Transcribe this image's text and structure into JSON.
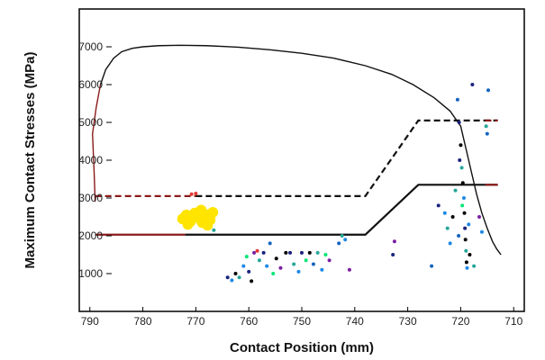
{
  "chart_data": {
    "type": "line",
    "title": "",
    "xlabel": "Contact Position (mm)",
    "ylabel": "Maximum Contact Stresses (MPa)",
    "x_reversed": true,
    "xlim": [
      792,
      708
    ],
    "ylim": [
      0,
      8000
    ],
    "x_ticks": [
      790,
      780,
      770,
      760,
      750,
      740,
      730,
      720,
      710
    ],
    "y_ticks": [
      1000,
      2000,
      3000,
      4000,
      5000,
      6000,
      7000
    ],
    "grid": false,
    "legend": "none",
    "series": [
      {
        "color_start": "#8b1a1a",
        "color": "#111111",
        "style": "solid",
        "x": [
          789,
          789.2,
          789.5,
          788.8,
          788,
          787,
          785.5,
          784,
          782,
          780,
          777,
          773,
          768,
          762,
          756,
          750,
          744,
          738,
          733,
          729,
          725,
          722,
          720,
          719,
          718,
          717,
          716,
          715,
          714,
          713.2,
          712.4
        ],
        "y": [
          2900,
          3700,
          4700,
          5400,
          6000,
          6400,
          6700,
          6870,
          6960,
          7000,
          7030,
          7040,
          7030,
          6990,
          6920,
          6830,
          6700,
          6500,
          6270,
          6000,
          5650,
          5300,
          4900,
          4300,
          3700,
          3100,
          2600,
          2200,
          1850,
          1650,
          1500
        ]
      },
      {
        "color_start": "#8b1a1a",
        "color": "#111111",
        "style": "dashed",
        "x": [
          789,
          770,
          738,
          728,
          713
        ],
        "y": [
          3050,
          3050,
          3050,
          5050,
          5050
        ]
      },
      {
        "color_start": "#8b1a1a",
        "color": "#111111",
        "style": "solid",
        "x": [
          789,
          772,
          738,
          728,
          713
        ],
        "y": [
          2030,
          2030,
          2030,
          3350,
          3350
        ]
      }
    ],
    "scatter_colors": [
      "#1a237e",
      "#1e88e5",
      "#26a69a",
      "#00e676",
      "#7b1fa2",
      "#000000",
      "#e53935",
      "#1565c0"
    ],
    "scatter": [
      {
        "x": 772.5,
        "y": 2450,
        "color": "#ffe400"
      },
      {
        "x": 771.8,
        "y": 2550,
        "color": "#ffe400"
      },
      {
        "x": 771,
        "y": 2380,
        "color": "#ffe400"
      },
      {
        "x": 770.2,
        "y": 2600,
        "color": "#ffe400"
      },
      {
        "x": 769.5,
        "y": 2480,
        "color": "#ffe400"
      },
      {
        "x": 768.8,
        "y": 2350,
        "color": "#ffe400"
      },
      {
        "x": 768,
        "y": 2560,
        "color": "#ffe400"
      },
      {
        "x": 767.3,
        "y": 2420,
        "color": "#ffe400"
      },
      {
        "x": 766.8,
        "y": 2620,
        "color": "#ffe400"
      },
      {
        "x": 771.5,
        "y": 2300,
        "color": "#ffe400"
      },
      {
        "x": 769,
        "y": 2680,
        "color": "#ffe400"
      },
      {
        "x": 767.8,
        "y": 2280,
        "color": "#ffe400"
      },
      {
        "x": 770.8,
        "y": 3100,
        "color": "#e53935"
      },
      {
        "x": 770,
        "y": 3120,
        "color": "#e53935"
      },
      {
        "x": 766.6,
        "y": 2150,
        "color": "#26a69a"
      },
      {
        "x": 764,
        "y": 900,
        "color": "#1a237e"
      },
      {
        "x": 763.2,
        "y": 820,
        "color": "#1e88e5"
      },
      {
        "x": 762.5,
        "y": 1000,
        "color": "#000000"
      },
      {
        "x": 761.8,
        "y": 900,
        "color": "#26a69a"
      },
      {
        "x": 761,
        "y": 1200,
        "color": "#1e88e5"
      },
      {
        "x": 760.4,
        "y": 1450,
        "color": "#00e676"
      },
      {
        "x": 760,
        "y": 1050,
        "color": "#1a237e"
      },
      {
        "x": 759.5,
        "y": 800,
        "color": "#000000"
      },
      {
        "x": 759,
        "y": 1550,
        "color": "#7b1fa2"
      },
      {
        "x": 758.4,
        "y": 1600,
        "color": "#e53935"
      },
      {
        "x": 758,
        "y": 1350,
        "color": "#26a69a"
      },
      {
        "x": 757.2,
        "y": 1550,
        "color": "#1a237e"
      },
      {
        "x": 756.6,
        "y": 1200,
        "color": "#1e88e5"
      },
      {
        "x": 756,
        "y": 1800,
        "color": "#1565c0"
      },
      {
        "x": 755.4,
        "y": 1000,
        "color": "#00e676"
      },
      {
        "x": 754.8,
        "y": 1400,
        "color": "#000000"
      },
      {
        "x": 754,
        "y": 1150,
        "color": "#7b1fa2"
      },
      {
        "x": 753,
        "y": 1550,
        "color": "#000000"
      },
      {
        "x": 752.2,
        "y": 1550,
        "color": "#1a237e"
      },
      {
        "x": 751.5,
        "y": 1250,
        "color": "#26a69a"
      },
      {
        "x": 750.6,
        "y": 1050,
        "color": "#1e88e5"
      },
      {
        "x": 750,
        "y": 1550,
        "color": "#1a237e"
      },
      {
        "x": 749.2,
        "y": 1350,
        "color": "#00e676"
      },
      {
        "x": 748.5,
        "y": 1550,
        "color": "#000000"
      },
      {
        "x": 747.8,
        "y": 1250,
        "color": "#1565c0"
      },
      {
        "x": 747,
        "y": 1550,
        "color": "#26a69a"
      },
      {
        "x": 746.2,
        "y": 1100,
        "color": "#1e88e5"
      },
      {
        "x": 745.5,
        "y": 1500,
        "color": "#00e676"
      },
      {
        "x": 744.8,
        "y": 1350,
        "color": "#7b1fa2"
      },
      {
        "x": 743,
        "y": 1800,
        "color": "#1565c0"
      },
      {
        "x": 742.4,
        "y": 2000,
        "color": "#26a69a"
      },
      {
        "x": 741.8,
        "y": 1900,
        "color": "#1e88e5"
      },
      {
        "x": 741,
        "y": 1100,
        "color": "#7b1fa2"
      },
      {
        "x": 732.5,
        "y": 1850,
        "color": "#7b1fa2"
      },
      {
        "x": 732.8,
        "y": 1500,
        "color": "#1a237e"
      },
      {
        "x": 725.5,
        "y": 1200,
        "color": "#1565c0"
      },
      {
        "x": 724.2,
        "y": 2800,
        "color": "#1a237e"
      },
      {
        "x": 723,
        "y": 2600,
        "color": "#1e88e5"
      },
      {
        "x": 722.5,
        "y": 2200,
        "color": "#26a69a"
      },
      {
        "x": 722,
        "y": 1800,
        "color": "#1e88e5"
      },
      {
        "x": 721.5,
        "y": 2500,
        "color": "#000000"
      },
      {
        "x": 721,
        "y": 3200,
        "color": "#26a69a"
      },
      {
        "x": 720.6,
        "y": 5600,
        "color": "#1565c0"
      },
      {
        "x": 720.3,
        "y": 5000,
        "color": "#1a237e"
      },
      {
        "x": 720,
        "y": 4400,
        "color": "#000000"
      },
      {
        "x": 719.8,
        "y": 3800,
        "color": "#26a69a"
      },
      {
        "x": 719.6,
        "y": 3400,
        "color": "#000000"
      },
      {
        "x": 719.4,
        "y": 3000,
        "color": "#1e88e5"
      },
      {
        "x": 719.3,
        "y": 2600,
        "color": "#000000"
      },
      {
        "x": 719.2,
        "y": 2200,
        "color": "#1a237e"
      },
      {
        "x": 719.1,
        "y": 1900,
        "color": "#000000"
      },
      {
        "x": 719,
        "y": 1600,
        "color": "#26a69a"
      },
      {
        "x": 718.9,
        "y": 1300,
        "color": "#000000"
      },
      {
        "x": 718.8,
        "y": 1150,
        "color": "#1e88e5"
      },
      {
        "x": 720.2,
        "y": 4000,
        "color": "#1a237e"
      },
      {
        "x": 719.7,
        "y": 2800,
        "color": "#00e676"
      },
      {
        "x": 720.4,
        "y": 2000,
        "color": "#1565c0"
      },
      {
        "x": 717.5,
        "y": 1200,
        "color": "#26a69a"
      },
      {
        "x": 716.5,
        "y": 2500,
        "color": "#7b1fa2"
      },
      {
        "x": 716,
        "y": 2100,
        "color": "#1e88e5"
      },
      {
        "x": 715,
        "y": 4700,
        "color": "#1565c0"
      },
      {
        "x": 714.8,
        "y": 5850,
        "color": "#1565c0"
      },
      {
        "x": 717.8,
        "y": 6000,
        "color": "#1a237e"
      },
      {
        "x": 715.2,
        "y": 4900,
        "color": "#26a69a"
      },
      {
        "x": 718.3,
        "y": 1500,
        "color": "#000000"
      },
      {
        "x": 718.5,
        "y": 2300,
        "color": "#1e88e5"
      }
    ]
  }
}
